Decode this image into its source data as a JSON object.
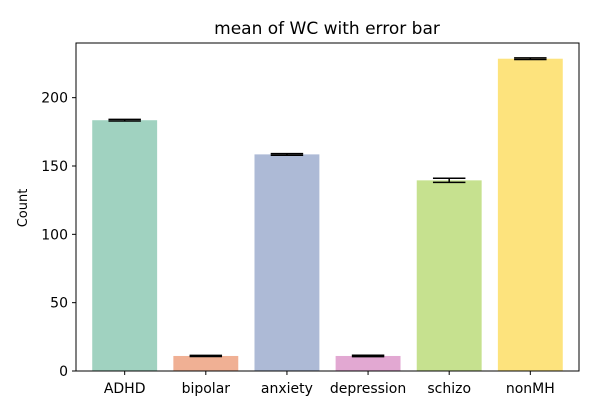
{
  "chart_data": {
    "type": "bar",
    "title": "mean of WC with error bar",
    "xlabel": "",
    "ylabel": "Count",
    "categories": [
      "ADHD",
      "bipolar",
      "anxiety",
      "depression",
      "schizo",
      "nonMH"
    ],
    "values": [
      183.5,
      11,
      158.5,
      11,
      139.5,
      228.5
    ],
    "errors": [
      0.6,
      0.4,
      0.6,
      0.5,
      1.5,
      0.6
    ],
    "colors": [
      "#a0d2c0",
      "#f0b094",
      "#adbad6",
      "#e2a8d2",
      "#c6e18f",
      "#fde37d"
    ],
    "yticks": [
      0,
      50,
      100,
      150,
      200
    ],
    "ylim": [
      0,
      240
    ],
    "grid": false,
    "legend": "none"
  }
}
